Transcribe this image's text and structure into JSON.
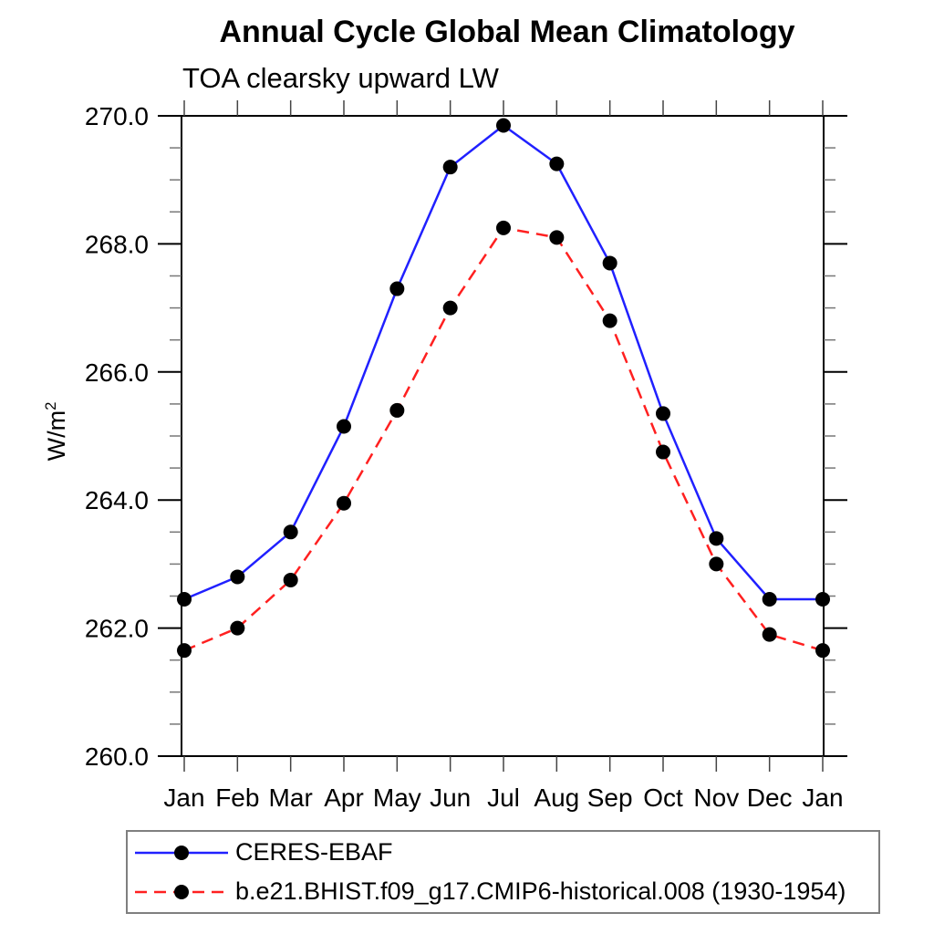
{
  "chart_data": {
    "type": "line",
    "title": "Annual Cycle Global Mean Climatology",
    "subtitle": "TOA clearsky upward LW",
    "ylabel_base": "W/m",
    "ylabel_exponent": "2",
    "categories": [
      "Jan",
      "Feb",
      "Mar",
      "Apr",
      "May",
      "Jun",
      "Jul",
      "Aug",
      "Sep",
      "Oct",
      "Nov",
      "Dec",
      "Jan"
    ],
    "ylim": [
      260.0,
      270.0
    ],
    "ytick_major": [
      260.0,
      262.0,
      264.0,
      266.0,
      268.0,
      270.0
    ],
    "ytick_major_labels": [
      "260.0",
      "262.0",
      "264.0",
      "266.0",
      "268.0",
      "270.0"
    ],
    "ytick_minor_step": 0.5,
    "grid": false,
    "legend_position": "bottom-left",
    "axis_color": "#000000",
    "series": [
      {
        "name": "CERES-EBAF",
        "color": "#2020ff",
        "style": "solid",
        "marker": "circle",
        "marker_color": "#000000",
        "values": [
          262.45,
          262.8,
          263.5,
          265.15,
          267.3,
          269.2,
          269.85,
          269.25,
          267.7,
          265.35,
          263.4,
          262.45,
          262.45
        ]
      },
      {
        "name": "b.e21.BHIST.f09_g17.CMIP6-historical.008 (1930-1954)",
        "color": "#ff2020",
        "style": "dashed",
        "marker": "circle",
        "marker_color": "#000000",
        "values": [
          261.65,
          262.0,
          262.75,
          263.95,
          265.4,
          267.0,
          268.25,
          268.1,
          266.8,
          264.75,
          263.0,
          261.9,
          261.65
        ]
      }
    ]
  }
}
